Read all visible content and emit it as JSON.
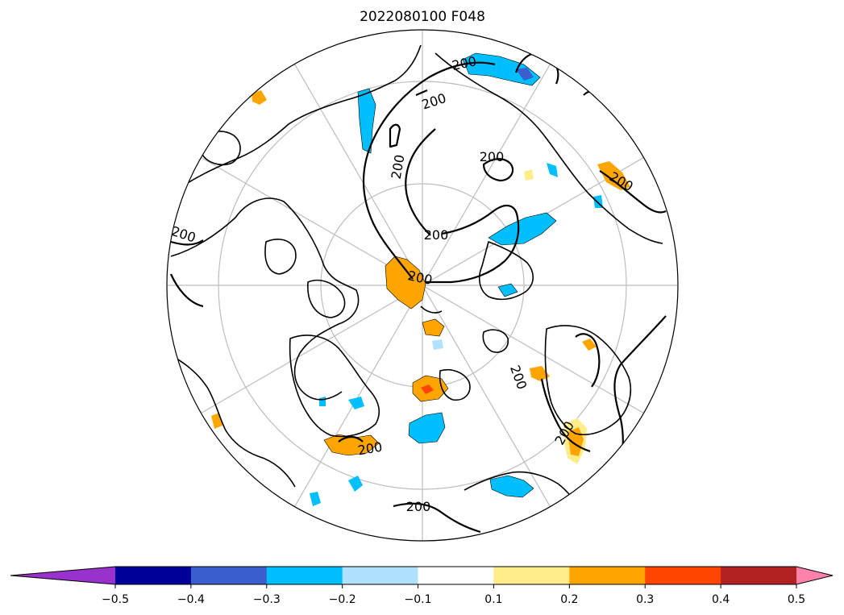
{
  "title": "2022080100 F048",
  "contour_label": "200",
  "colorbar": {
    "bins": [
      {
        "color": "#9932cc"
      },
      {
        "color": "#000099"
      },
      {
        "color": "#3a5fcd"
      },
      {
        "color": "#00bfff"
      },
      {
        "color": "#b0e2ff"
      },
      {
        "color": "#ffffff"
      },
      {
        "color": "#ffec8b"
      },
      {
        "color": "#ffa500"
      },
      {
        "color": "#ff4500"
      },
      {
        "color": "#b22222"
      },
      {
        "color": "#ff82ab"
      }
    ],
    "ticks": [
      "−0.5",
      "−0.4",
      "−0.3",
      "−0.2",
      "−0.1",
      "0.1",
      "0.2",
      "0.3",
      "0.4",
      "0.5"
    ],
    "extend": "both"
  },
  "map": {
    "projection": "north-polar-stereographic",
    "contour_level": 200
  }
}
